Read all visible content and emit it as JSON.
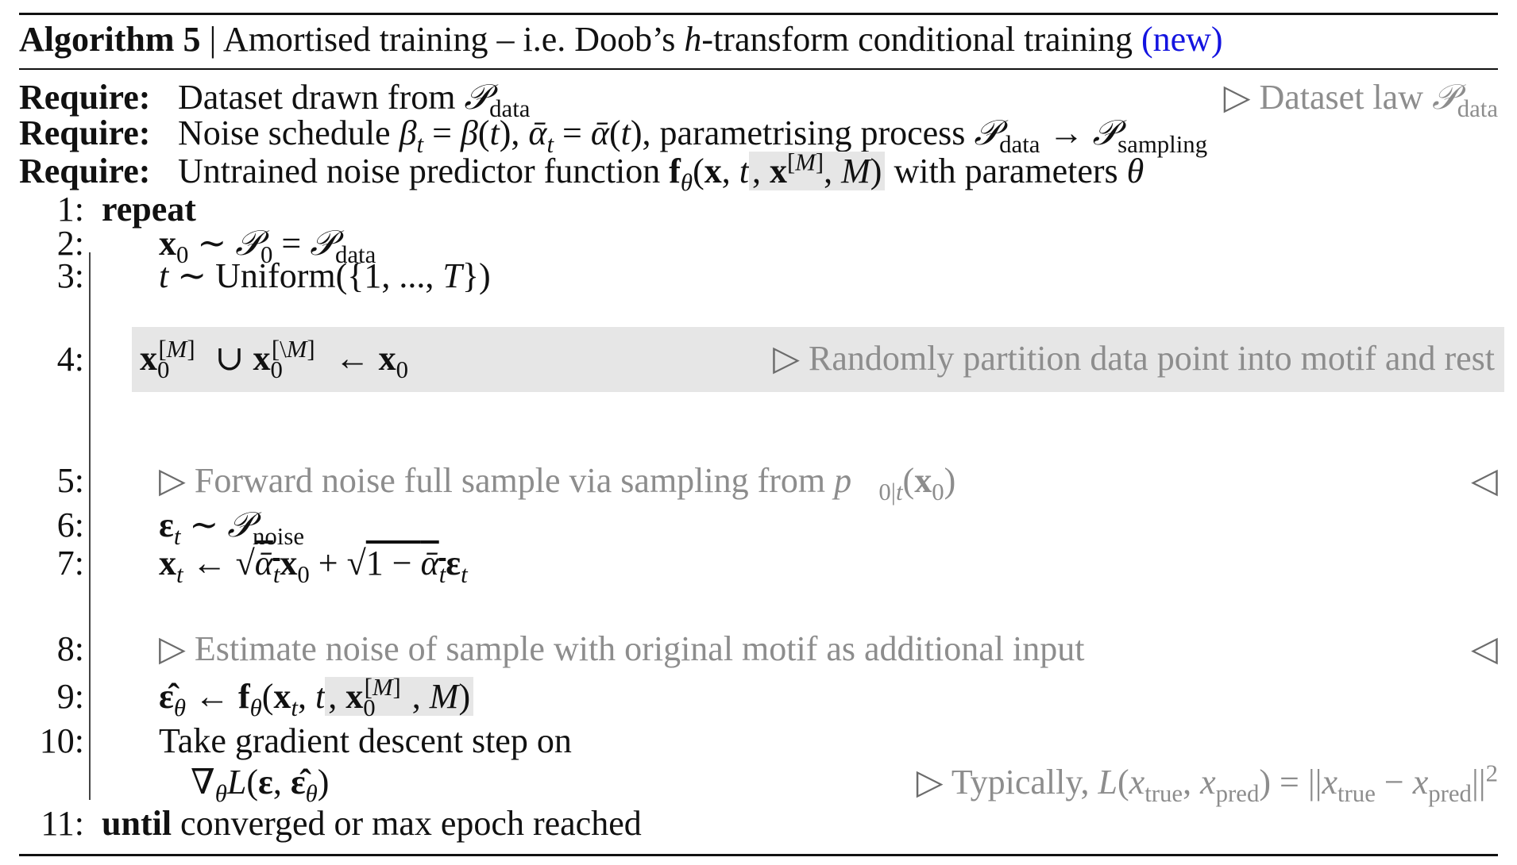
{
  "title": {
    "label": "Algorithm 5",
    "separator": "|",
    "text": "Amortised training – i.e. Doob’s h-transform conditional training",
    "tag": "(new)"
  },
  "requires": [
    {
      "label": "Require:",
      "text": "Dataset drawn from 𝒫data",
      "comment": "▷ Dataset law 𝒫data"
    },
    {
      "label": "Require:",
      "text": "Noise schedule βt = β(t), ᾱt = ᾱ(t), parametrising process 𝒫data → 𝒫sampling",
      "comment": ""
    },
    {
      "label": "Require:",
      "text": "Untrained noise predictor function fθ(x, t, x[M], M) with parameters θ",
      "comment": ""
    }
  ],
  "steps": [
    {
      "num": "1:",
      "keyword": "repeat",
      "text": ""
    },
    {
      "num": "2:",
      "text": "x0 ∼ 𝒫0 = 𝒫data"
    },
    {
      "num": "3:",
      "text": "t ∼ Uniform({1, ..., T})"
    },
    {
      "num": "4:",
      "text": "x0[M] ∪ x0[\\M] ← x0",
      "comment": "▷ Randomly partition data point into motif and rest"
    },
    {
      "num": "5:",
      "text": "▷ Forward noise full sample via sampling from p⃗0|t(x0)",
      "end": "◁"
    },
    {
      "num": "6:",
      "text": "εt ∼ 𝒫noise"
    },
    {
      "num": "7:",
      "text": "xt ← √ᾱt x0 + √(1 − ᾱt) εt"
    },
    {
      "num": "8:",
      "text": "▷ Estimate noise of sample with original motif as additional input",
      "end": "◁"
    },
    {
      "num": "9:",
      "text": "ε̂θ ← fθ(xt, t, x0[M], M)"
    },
    {
      "num": "10:",
      "text": "Take gradient descent step on",
      "text2": "∇θL(ε, ε̂θ)",
      "comment": "▷ Typically, L(xtrue, xpred) = ||xtrue − xpred||²"
    },
    {
      "num": "11:",
      "keyword": "until",
      "text": "converged or max epoch reached"
    }
  ]
}
